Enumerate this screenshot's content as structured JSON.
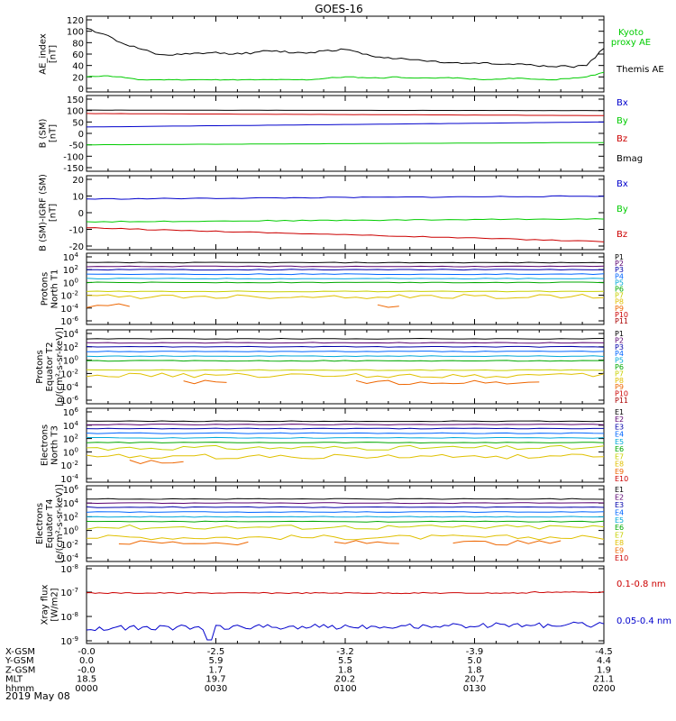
{
  "title": "GOES-16",
  "colors": {
    "black": "#000000",
    "blue": "#0000cc",
    "green": "#00cc00",
    "red": "#cc0000",
    "navy": "#00007a",
    "cyan": "#00b0c8",
    "teal": "#00a08a",
    "lime": "#33cc33",
    "yellow": "#cccc00",
    "orange": "#e08000",
    "darkred": "#990000",
    "p1": "#000000",
    "p2": "#5a0070",
    "p3": "#0000aa",
    "p4": "#0066ff",
    "p5": "#00a8d8",
    "p6": "#00a800",
    "p7": "#c8d000",
    "p8": "#e0c000",
    "p9": "#ee6600",
    "p10": "#cc0000",
    "p11": "#aa0000"
  },
  "chart_data": [
    {
      "type": "line",
      "ylabel": "AE_index [nT]",
      "yticks": [
        "120",
        "100",
        "80",
        "60",
        "40",
        "20",
        "0"
      ],
      "ylim": [
        0,
        120
      ],
      "x_minutes": [
        0,
        4,
        8,
        12,
        16,
        20,
        24,
        28,
        32,
        36,
        40,
        44,
        48,
        52,
        56,
        60,
        64,
        68,
        72,
        76,
        80,
        84,
        88,
        92,
        96,
        100,
        104,
        108,
        112,
        116,
        120
      ],
      "series": [
        {
          "name": "Kyoto proxy AE",
          "color_key": "green",
          "values": [
            20,
            22,
            20,
            15,
            15,
            15,
            15,
            15,
            15,
            15,
            15,
            15,
            15,
            15,
            18,
            20,
            19,
            18,
            20,
            18,
            18,
            19,
            17,
            15,
            16,
            18,
            16,
            15,
            17,
            20,
            28
          ]
        },
        {
          "name": "Themis AE",
          "color_key": "black",
          "values": [
            105,
            95,
            80,
            70,
            60,
            58,
            60,
            62,
            62,
            60,
            64,
            66,
            62,
            63,
            67,
            68,
            60,
            55,
            52,
            50,
            48,
            45,
            44,
            45,
            42,
            43,
            40,
            38,
            38,
            40,
            70
          ]
        }
      ],
      "legend": [
        "Kyoto",
        "proxy AE",
        "Themis AE"
      ]
    },
    {
      "type": "line",
      "ylabel": "B (SM) [nT]",
      "yticks": [
        "150",
        "100",
        "50",
        "0",
        "-50",
        "-100",
        "-150"
      ],
      "ylim": [
        -150,
        150
      ],
      "series": [
        {
          "name": "Bx",
          "color_key": "blue",
          "start": 28,
          "end": 50
        },
        {
          "name": "By",
          "color_key": "green",
          "start": -50,
          "end": -40
        },
        {
          "name": "Bz",
          "color_key": "red",
          "start": 87,
          "end": 78
        },
        {
          "name": "Bmag",
          "color_key": "black",
          "start": 102,
          "end": 100
        }
      ]
    },
    {
      "type": "line",
      "ylabel": "B (SM)-IGRF (SM) [nT]",
      "yticks": [
        "20",
        "10",
        "0",
        "-10",
        "-20"
      ],
      "ylim": [
        -22,
        22
      ],
      "series": [
        {
          "name": "Bx",
          "color_key": "blue",
          "start": 9,
          "end": 11
        },
        {
          "name": "By",
          "color_key": "green",
          "start": -6,
          "end": -4
        },
        {
          "name": "Bz",
          "color_key": "red",
          "start": -10,
          "end": -19
        }
      ]
    },
    {
      "type": "line",
      "ylabel": "Protons North T1",
      "yticks": [
        "10^4",
        "10^2",
        "10^0",
        "10^-2",
        "10^-4",
        "10^-6"
      ],
      "ylim_log": [
        -6,
        4
      ],
      "channels": [
        "P1",
        "P2",
        "P3",
        "P4",
        "P5",
        "P6",
        "P7",
        "P8",
        "P9",
        "P10",
        "P11"
      ]
    },
    {
      "type": "line",
      "ylabel": "Protons Equator T2 [p/(cm2-s-sr-keV)]",
      "yticks": [
        "10^4",
        "10^2",
        "10^0",
        "10^-2",
        "10^-4",
        "10^-6"
      ],
      "ylim_log": [
        -6,
        4
      ],
      "channels": [
        "P1",
        "P2",
        "P3",
        "P4",
        "P5",
        "P6",
        "P7",
        "P8",
        "P9",
        "P10",
        "P11"
      ]
    },
    {
      "type": "line",
      "ylabel": "Electrons North T3",
      "yticks": [
        "10^6",
        "10^4",
        "10^2",
        "10^0",
        "10^-2",
        "10^-4"
      ],
      "ylim_log": [
        -4,
        6
      ],
      "channels": [
        "E1",
        "E2",
        "E3",
        "E4",
        "E5",
        "E6",
        "E7",
        "E8",
        "E9",
        "E10"
      ]
    },
    {
      "type": "line",
      "ylabel": "Electrons Equator T4 [e/(cm2-s-sr-keV)]",
      "yticks": [
        "10^6",
        "10^4",
        "10^2",
        "10^0",
        "10^-2",
        "10^-4"
      ],
      "ylim_log": [
        -4,
        6
      ],
      "channels": [
        "E1",
        "E2",
        "E3",
        "E4",
        "E5",
        "E6",
        "E7",
        "E8",
        "E9",
        "E10"
      ]
    },
    {
      "type": "line",
      "ylabel": "Xray flux [W/m2]",
      "yticks": [
        "10^-8",
        "10^-7",
        "10^-8",
        "10^-9"
      ],
      "series": [
        {
          "name": "0.1-0.8 nm",
          "color_key": "red"
        },
        {
          "name": "0.05-0.4 nm",
          "color_key": "blue"
        }
      ]
    }
  ],
  "xaxis": {
    "rows": [
      {
        "label": "X-GSM",
        "values": [
          "-0.0",
          "-2.5",
          "-3.2",
          "-3.9",
          "-4.5"
        ]
      },
      {
        "label": "Y-GSM",
        "values": [
          "0.0",
          "5.9",
          "5.5",
          "5.0",
          "4.4"
        ]
      },
      {
        "label": "Z-GSM",
        "values": [
          "-0.0",
          "1.7",
          "1.8",
          "1.8",
          "1.9"
        ]
      },
      {
        "label": "MLT",
        "values": [
          "18.5",
          "19.7",
          "20.2",
          "20.7",
          "21.1"
        ]
      },
      {
        "label": "hhmm",
        "values": [
          "0000",
          "0030",
          "0100",
          "0130",
          "0200"
        ]
      }
    ],
    "date": "2019 May 08"
  }
}
